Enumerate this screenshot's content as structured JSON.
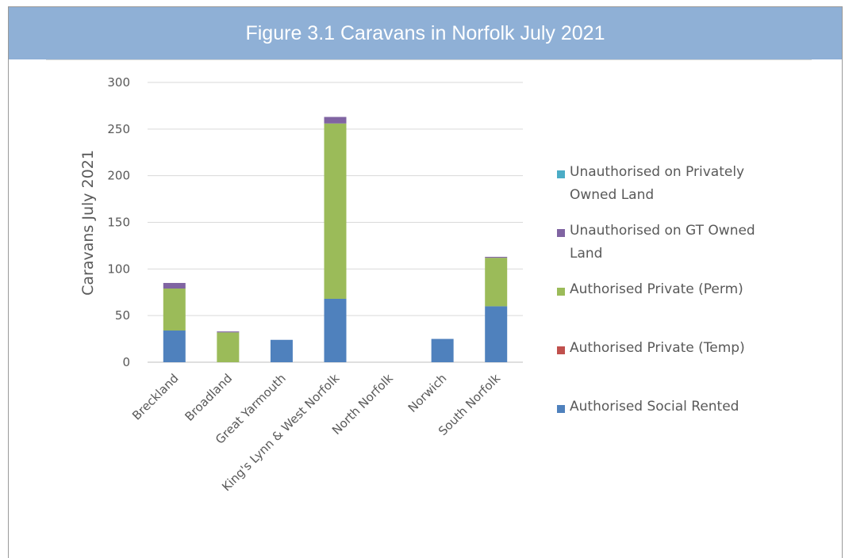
{
  "header": {
    "title": "Figure 3.1 Caravans in Norfolk July 2021"
  },
  "chart_data": {
    "type": "bar",
    "stacked": true,
    "title": "Figure 3.1 Caravans in Norfolk July 2021",
    "xlabel": "",
    "ylabel": "Caravans July 2021",
    "ylim": [
      0,
      300
    ],
    "yticks": [
      0,
      50,
      100,
      150,
      200,
      250,
      300
    ],
    "grid": true,
    "legend_position": "right",
    "categories": [
      "Breckland",
      "Broadland",
      "Great Yarmouth",
      "King's Lynn & West Norfolk",
      "North Norfolk",
      "Norwich",
      "South Norfolk"
    ],
    "series": [
      {
        "name": "Authorised Social Rented",
        "color": "#4f81bd",
        "values": [
          34,
          0,
          24,
          68,
          0,
          25,
          60
        ]
      },
      {
        "name": "Authorised Private (Temp)",
        "color": "#c0504d",
        "values": [
          0,
          0,
          0,
          0,
          0,
          0,
          0
        ]
      },
      {
        "name": "Authorised Private (Perm)",
        "color": "#9bbb59",
        "values": [
          45,
          32,
          0,
          188,
          0,
          0,
          52
        ]
      },
      {
        "name": "Unauthorised on GT Owned Land",
        "color": "#8064a2",
        "values": [
          6,
          1,
          0,
          7,
          0,
          0,
          1
        ]
      },
      {
        "name": "Unauthorised on Privately Owned Land",
        "color": "#4bacc6",
        "values": [
          0,
          0,
          0,
          0,
          0,
          0,
          0
        ]
      }
    ],
    "legend_order": [
      "Unauthorised on Privately Owned Land",
      "Unauthorised on GT Owned Land",
      "Authorised Private (Perm)",
      "Authorised Private (Temp)",
      "Authorised Social Rented"
    ],
    "legend_labels": {
      "Unauthorised on Privately Owned Land": [
        "Unauthorised on Privately",
        "Owned Land"
      ],
      "Unauthorised on GT Owned Land": [
        "Unauthorised on GT Owned",
        "Land"
      ],
      "Authorised Private (Perm)": [
        "Authorised Private (Perm)"
      ],
      "Authorised Private (Temp)": [
        "Authorised Private (Temp)"
      ],
      "Authorised Social Rented": [
        "Authorised Social Rented"
      ]
    }
  }
}
